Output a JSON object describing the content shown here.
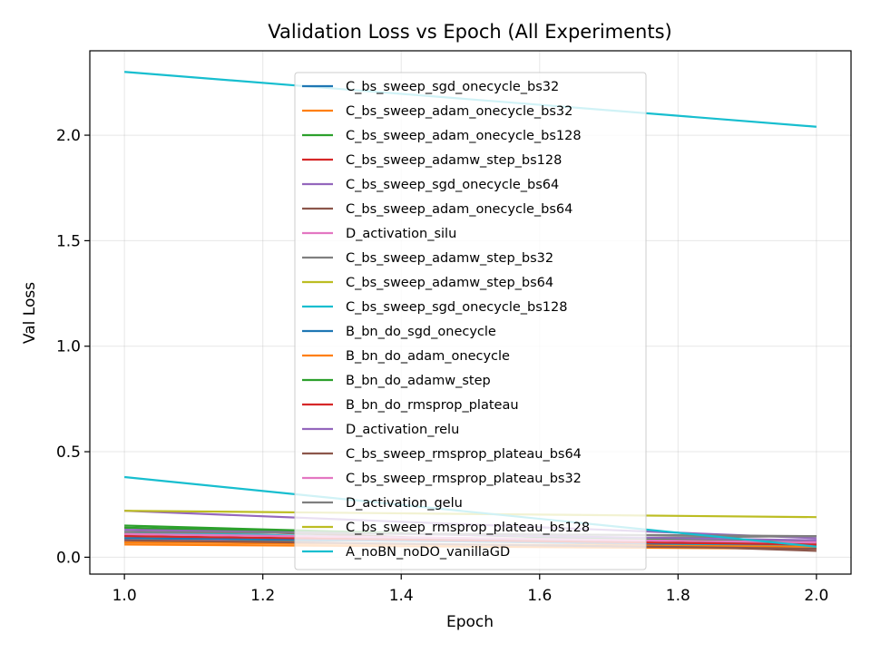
{
  "chart_data": {
    "type": "line",
    "title": "Validation Loss vs Epoch (All Experiments)",
    "xlabel": "Epoch",
    "ylabel": "Val Loss",
    "xlim": [
      0.95,
      2.05
    ],
    "ylim": [
      -0.08,
      2.4
    ],
    "xticks": [
      "1.0",
      "1.2",
      "1.4",
      "1.6",
      "1.8",
      "2.0"
    ],
    "yticks": [
      "0.0",
      "0.5",
      "1.0",
      "1.5",
      "2.0"
    ],
    "grid": true,
    "legend_position": "upper center",
    "x": [
      1.0,
      2.0
    ],
    "series": [
      {
        "name": "C_bs_sweep_sgd_onecycle_bs32",
        "color": "#1f77b4",
        "values": [
          0.1,
          0.05
        ]
      },
      {
        "name": "C_bs_sweep_adam_onecycle_bs32",
        "color": "#ff7f0e",
        "values": [
          0.06,
          0.04
        ]
      },
      {
        "name": "C_bs_sweep_adam_onecycle_bs128",
        "color": "#2ca02c",
        "values": [
          0.15,
          0.06
        ]
      },
      {
        "name": "C_bs_sweep_adamw_step_bs128",
        "color": "#d62728",
        "values": [
          0.11,
          0.07
        ]
      },
      {
        "name": "C_bs_sweep_sgd_onecycle_bs64",
        "color": "#9467bd",
        "values": [
          0.22,
          0.09
        ]
      },
      {
        "name": "C_bs_sweep_adam_onecycle_bs64",
        "color": "#8c564b",
        "values": [
          0.14,
          0.03
        ]
      },
      {
        "name": "D_activation_silu",
        "color": "#e377c2",
        "values": [
          0.08,
          0.08
        ]
      },
      {
        "name": "C_bs_sweep_adamw_step_bs32",
        "color": "#7f7f7f",
        "values": [
          0.07,
          0.1
        ]
      },
      {
        "name": "C_bs_sweep_adamw_step_bs64",
        "color": "#bcbd22",
        "values": [
          0.09,
          0.06
        ]
      },
      {
        "name": "C_bs_sweep_sgd_onecycle_bs128",
        "color": "#17becf",
        "values": [
          0.12,
          0.05
        ]
      },
      {
        "name": "B_bn_do_sgd_onecycle",
        "color": "#1f77b4",
        "values": [
          0.09,
          0.06
        ]
      },
      {
        "name": "B_bn_do_adam_onecycle",
        "color": "#ff7f0e",
        "values": [
          0.07,
          0.05
        ]
      },
      {
        "name": "B_bn_do_adamw_step",
        "color": "#2ca02c",
        "values": [
          0.14,
          0.07
        ]
      },
      {
        "name": "B_bn_do_rmsprop_plateau",
        "color": "#d62728",
        "values": [
          0.1,
          0.06
        ]
      },
      {
        "name": "D_activation_relu",
        "color": "#9467bd",
        "values": [
          0.13,
          0.08
        ]
      },
      {
        "name": "C_bs_sweep_rmsprop_plateau_bs64",
        "color": "#8c564b",
        "values": [
          0.08,
          0.04
        ]
      },
      {
        "name": "C_bs_sweep_rmsprop_plateau_bs32",
        "color": "#e377c2",
        "values": [
          0.11,
          0.07
        ]
      },
      {
        "name": "D_activation_gelu",
        "color": "#7f7f7f",
        "values": [
          0.12,
          0.1
        ]
      },
      {
        "name": "C_bs_sweep_rmsprop_plateau_bs128",
        "color": "#bcbd22",
        "values": [
          0.22,
          0.19
        ]
      },
      {
        "name": "A_noBN_noDO_vanillaGD",
        "color": "#17becf",
        "values": [
          2.3,
          2.04
        ]
      },
      {
        "name": "",
        "color": "#17becf",
        "values": [
          0.38,
          0.05
        ]
      }
    ]
  }
}
